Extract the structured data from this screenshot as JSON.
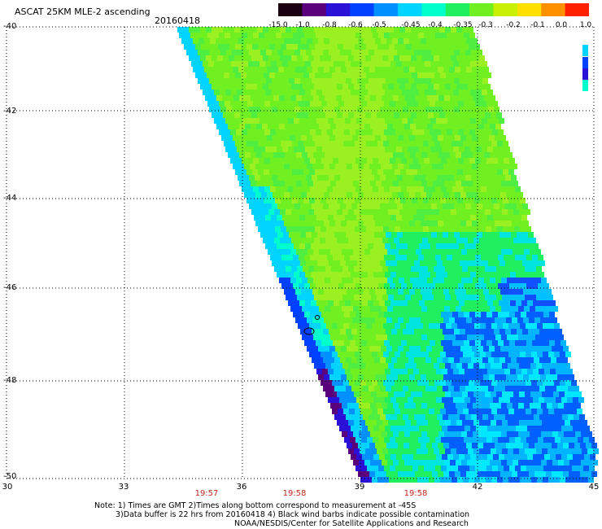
{
  "header": {
    "title": "ASCAT 25KM MLE-2 ascending",
    "date": "20160418"
  },
  "colorbar": {
    "labels": [
      "-15.0",
      "-1.0",
      "-0.8",
      "-0.6",
      "-0.5",
      "-0.45",
      "-0.4",
      "-0.35",
      "-0.3",
      "-0.2",
      "-0.1",
      "0.0",
      "1.0"
    ],
    "colors": [
      "#1a0010",
      "#5a007a",
      "#2b10d8",
      "#0040ff",
      "#0090ff",
      "#00d4ff",
      "#00ffcc",
      "#20f060",
      "#70f020",
      "#c8f000",
      "#ffe000",
      "#ff9000",
      "#ff2000"
    ]
  },
  "axes": {
    "y_labels": [
      "-40",
      "-42",
      "-44",
      "-46",
      "-48",
      "-50"
    ],
    "x_labels": [
      "30",
      "33",
      "36",
      "39",
      "42",
      "45"
    ],
    "lat_range": [
      -50,
      -40
    ],
    "lon_range": [
      30,
      45
    ],
    "grid": "dotted"
  },
  "times": [
    "19:57",
    "19:58",
    "19:58"
  ],
  "notes": {
    "line1": "Note: 1) Times are GMT 2)Times along bottom correspond to measurement at -45S",
    "line2": "3)Data buffer is 22 hrs from 20160418 4) Black wind barbs indicate possible contamination",
    "line3": "NOAA/NESDIS/Center for Satellite Applications and Research"
  }
}
